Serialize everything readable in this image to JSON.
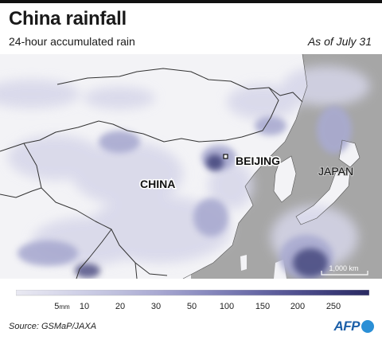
{
  "header": {
    "title": "China rainfall",
    "subtitle": "24-hour accumulated rain",
    "as_of": "As of July 31"
  },
  "map": {
    "labels": {
      "china": "CHINA",
      "beijing": "BEIJING",
      "japan": "JAPAN"
    },
    "scale_bar": "1,000 km"
  },
  "legend": {
    "ticks": [
      "5",
      "10",
      "20",
      "30",
      "50",
      "100",
      "150",
      "200",
      "250"
    ],
    "unit": "mm",
    "colors": [
      "#e9e9f2",
      "#dcdcec",
      "#cccde5",
      "#bcbddc",
      "#a9a9d2",
      "#9293c4",
      "#7b7cb4",
      "#6465a2",
      "#4f4f8e",
      "#3b3b78",
      "#2a2a62"
    ]
  },
  "footer": {
    "source": "Source: GSMaP/JAXA",
    "logo_text": "AFP"
  },
  "colors": {
    "land": "#f3f3f6",
    "sea": "#a6a6a6",
    "rain_light": "#d9d9ea",
    "rain_mid": "#a7a8cf",
    "rain_heavy": "#45467c",
    "brand": "#1b5fa8"
  }
}
